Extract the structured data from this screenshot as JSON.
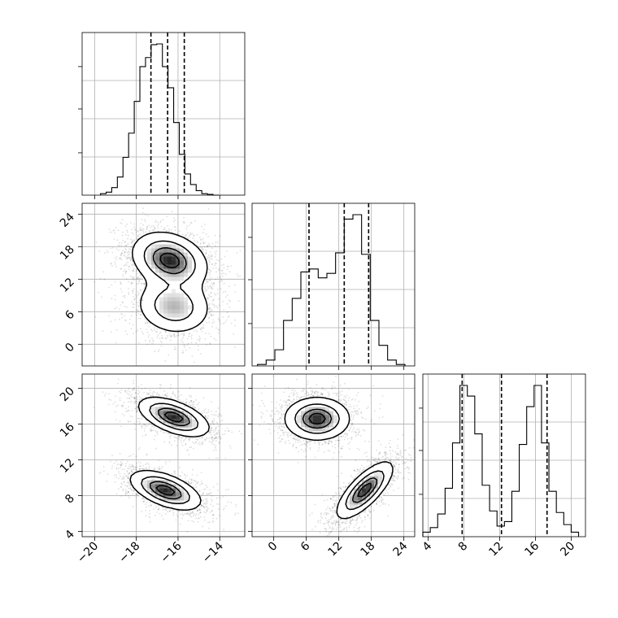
{
  "chart_data": {
    "type": "corner",
    "grid": true,
    "parameters": 3,
    "diag": [
      {
        "name": "hist-param-1",
        "edges": [
          -19.72,
          -19.45,
          -19.18,
          -18.91,
          -18.64,
          -18.37,
          -18.1,
          -17.83,
          -17.56,
          -17.29,
          -17.02,
          -16.75,
          -16.48,
          -16.21,
          -15.94,
          -15.67,
          -15.4,
          -15.13,
          -14.86,
          -14.59,
          -14.32,
          -14.05
        ],
        "counts": [
          0.01,
          0.02,
          0.05,
          0.12,
          0.25,
          0.41,
          0.62,
          0.85,
          0.91,
          0.995,
          1.0,
          0.85,
          0.71,
          0.48,
          0.27,
          0.14,
          0.07,
          0.03,
          0.01,
          0.005,
          0.0
        ],
        "quantiles": [
          -17.3,
          -16.5,
          -15.7
        ]
      },
      {
        "name": "hist-param-2",
        "edges": [
          -3,
          -1.4,
          0.2,
          1.8,
          3.4,
          5.0,
          6.6,
          8.2,
          9.8,
          11.4,
          13.0,
          14.6,
          16.2,
          17.8,
          19.4,
          21.0,
          22.6,
          24.2
        ],
        "counts": [
          0.01,
          0.04,
          0.11,
          0.31,
          0.46,
          0.64,
          0.66,
          0.6,
          0.63,
          0.77,
          1.0,
          1.03,
          0.76,
          0.31,
          0.14,
          0.04,
          0.01
        ],
        "quantiles": [
          6.5,
          13.0,
          17.5
        ]
      },
      {
        "name": "hist-param-3",
        "edges": [
          3.4,
          4.23,
          5.06,
          5.89,
          6.72,
          7.55,
          8.38,
          9.21,
          10.04,
          10.87,
          11.7,
          12.53,
          13.36,
          14.19,
          15.02,
          15.85,
          16.68,
          17.51,
          18.34,
          19.17,
          20.0,
          20.83
        ],
        "counts": [
          0.03,
          0.06,
          0.15,
          0.32,
          0.62,
          1.0,
          0.93,
          0.68,
          0.34,
          0.17,
          0.07,
          0.1,
          0.3,
          0.61,
          0.86,
          1.0,
          0.62,
          0.3,
          0.16,
          0.08,
          0.03
        ],
        "quantiles": [
          7.8,
          12.2,
          17.3
        ]
      }
    ],
    "xlims": [
      [
        -20.6,
        -12.8
      ],
      [
        -4,
        26
      ],
      [
        3.4,
        21.6
      ]
    ],
    "ylims": [
      [
        -4,
        26
      ],
      [
        3.4,
        21.6
      ]
    ],
    "xticks": [
      [
        -20,
        -18,
        -16,
        -14
      ],
      [
        0,
        6,
        12,
        18,
        24
      ],
      [
        4,
        8,
        12,
        16,
        20
      ]
    ],
    "xtick_labels": [
      [
        "−20",
        "−18",
        "−16",
        "−14"
      ],
      [
        "0",
        "6",
        "12",
        "18",
        "24"
      ],
      [
        "4",
        "8",
        "12",
        "16",
        "20"
      ]
    ],
    "yticks": [
      [
        0,
        6,
        12,
        18,
        24
      ],
      [
        4,
        8,
        12,
        16,
        20
      ]
    ],
    "ytick_labels": [
      [
        "0",
        "6",
        "12",
        "18",
        "24"
      ],
      [
        "4",
        "8",
        "12",
        "16",
        "20"
      ]
    ],
    "pair_clusters": [
      {
        "row": 1,
        "col": 0,
        "blobs": [
          {
            "cx": -16.4,
            "cy": 15.5,
            "sx": 0.9,
            "sy": 2.6,
            "rho": -0.25,
            "w": 0.6
          },
          {
            "cx": -16.2,
            "cy": 7.0,
            "sx": 0.9,
            "sy": 2.6,
            "rho": -0.1,
            "w": 0.4
          }
        ]
      },
      {
        "row": 2,
        "col": 0,
        "blobs": [
          {
            "cx": -16.2,
            "cy": 16.8,
            "sx": 0.85,
            "sy": 1.1,
            "rho": -0.55,
            "w": 0.5
          },
          {
            "cx": -16.6,
            "cy": 8.6,
            "sx": 0.85,
            "sy": 1.1,
            "rho": -0.55,
            "w": 0.5
          }
        ]
      },
      {
        "row": 2,
        "col": 1,
        "blobs": [
          {
            "cx": 8.0,
            "cy": 16.6,
            "sx": 3.0,
            "sy": 1.2,
            "rho": 0.0,
            "w": 0.5
          },
          {
            "cx": 16.8,
            "cy": 8.6,
            "sx": 2.6,
            "sy": 1.6,
            "rho": 0.75,
            "w": 0.5
          }
        ]
      }
    ]
  }
}
